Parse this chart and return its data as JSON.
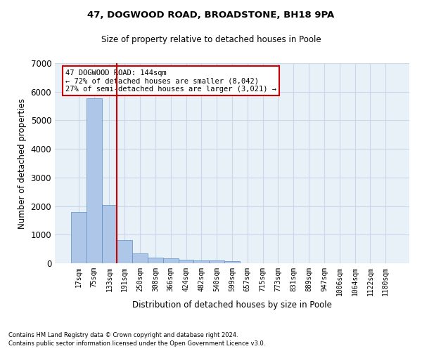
{
  "title1": "47, DOGWOOD ROAD, BROADSTONE, BH18 9PA",
  "title2": "Size of property relative to detached houses in Poole",
  "xlabel": "Distribution of detached houses by size in Poole",
  "ylabel": "Number of detached properties",
  "footer1": "Contains HM Land Registry data © Crown copyright and database right 2024.",
  "footer2": "Contains public sector information licensed under the Open Government Licence v3.0.",
  "annotation_line1": "47 DOGWOOD ROAD: 144sqm",
  "annotation_line2": "← 72% of detached houses are smaller (8,042)",
  "annotation_line3": "27% of semi-detached houses are larger (3,021) →",
  "bar_color": "#aec6e8",
  "bar_edge_color": "#5a8fc2",
  "grid_color": "#c8d8e8",
  "bg_color": "#e8f0f8",
  "vline_color": "#cc0000",
  "annotation_box_color": "#cc0000",
  "categories": [
    "17sqm",
    "75sqm",
    "133sqm",
    "191sqm",
    "250sqm",
    "308sqm",
    "366sqm",
    "424sqm",
    "482sqm",
    "540sqm",
    "599sqm",
    "657sqm",
    "715sqm",
    "773sqm",
    "831sqm",
    "889sqm",
    "947sqm",
    "1006sqm",
    "1064sqm",
    "1122sqm",
    "1180sqm"
  ],
  "values": [
    1800,
    5780,
    2050,
    820,
    340,
    195,
    160,
    115,
    100,
    95,
    80,
    0,
    0,
    0,
    0,
    0,
    0,
    0,
    0,
    0,
    0
  ],
  "ylim": [
    0,
    7000
  ],
  "yticks": [
    0,
    1000,
    2000,
    3000,
    4000,
    5000,
    6000,
    7000
  ],
  "vline_x_index": 2.5,
  "figsize": [
    6.0,
    5.0
  ],
  "dpi": 100
}
